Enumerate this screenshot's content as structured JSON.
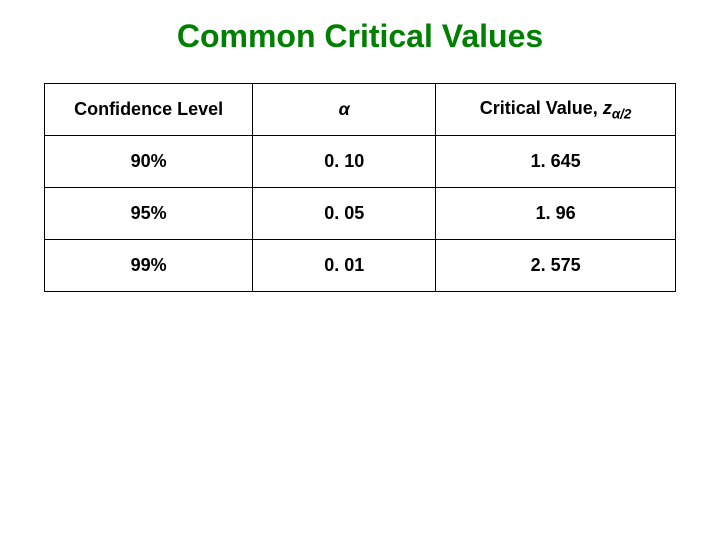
{
  "title": {
    "text": "Common Critical Values",
    "color": "#008000",
    "fontsize": 32
  },
  "table": {
    "border_color": "#000000",
    "cell_fontsize": 18,
    "header_fontsize": 18,
    "columns": {
      "confidence": "Confidence Level",
      "alpha_symbol": "α",
      "critical_prefix": "Critical Value, ",
      "critical_z": "z",
      "critical_sub": "α/2"
    },
    "rows": [
      {
        "confidence": "90%",
        "alpha": "0. 10",
        "critical": "1. 645"
      },
      {
        "confidence": "95%",
        "alpha": "0. 05",
        "critical": "1. 96"
      },
      {
        "confidence": "99%",
        "alpha": "0. 01",
        "critical": "2. 575"
      }
    ]
  }
}
